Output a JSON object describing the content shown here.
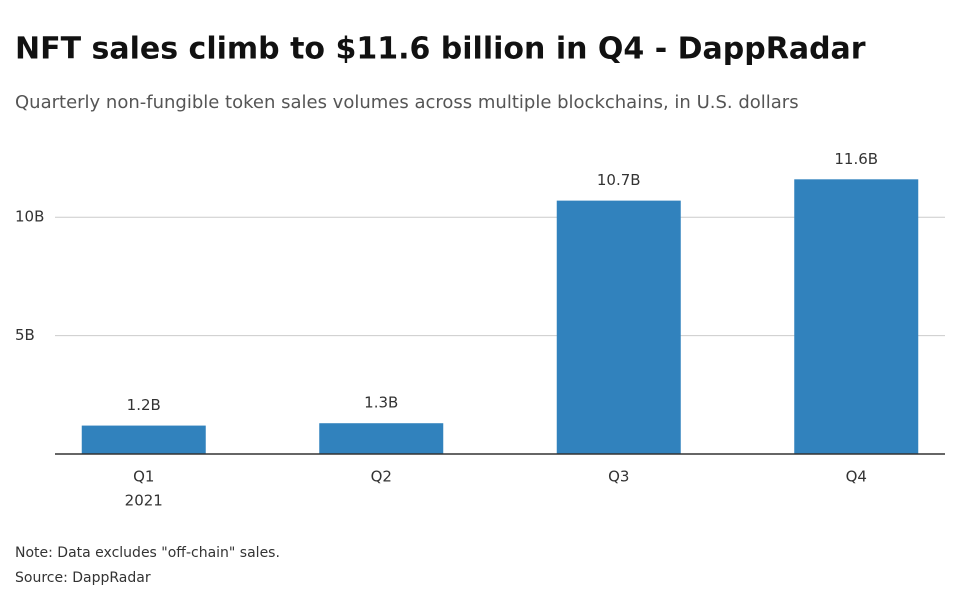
{
  "chart_data": {
    "type": "bar",
    "title": "NFT sales climb to $11.6 billion in Q4 - DappRadar",
    "subtitle": "Quarterly non-fungible token sales volumes across multiple blockchains, in U.S. dollars",
    "categories": [
      "Q1",
      "Q2",
      "Q3",
      "Q4"
    ],
    "category_sublabels": [
      "2021",
      null,
      null,
      null
    ],
    "values": [
      1.2,
      1.3,
      10.7,
      11.6
    ],
    "value_labels": [
      "1.2B",
      "1.3B",
      "10.7B",
      "11.6B"
    ],
    "color": "#3182bd",
    "ylim": [
      0,
      12.5
    ],
    "yticks": [
      {
        "value": 5,
        "label": "5B"
      },
      {
        "value": 10,
        "label": "10B"
      }
    ],
    "grid": true,
    "note": "Note: Data excludes \"off-chain\" sales.",
    "source": "Source: DappRadar"
  }
}
